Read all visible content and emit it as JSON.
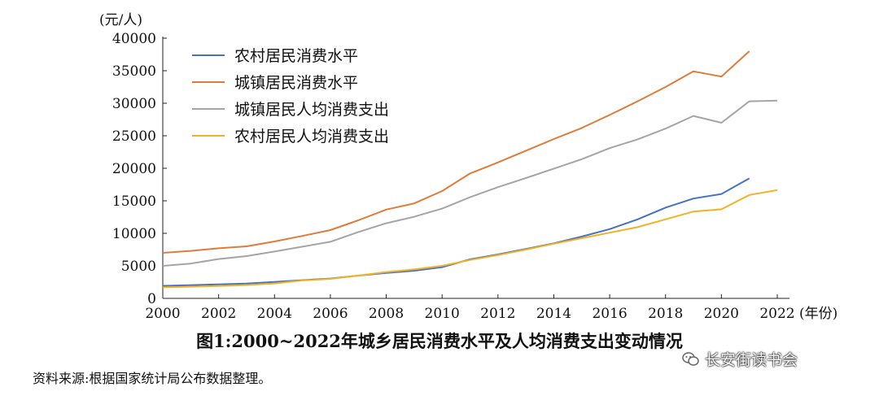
{
  "chart_data": {
    "type": "line",
    "unit_label": "(元/人)",
    "x_unit_label": "(年份)",
    "xlim": [
      2000,
      2022
    ],
    "ylim": [
      0,
      40000
    ],
    "x_ticks": [
      2000,
      2002,
      2004,
      2006,
      2008,
      2010,
      2012,
      2014,
      2016,
      2018,
      2020,
      2022
    ],
    "y_ticks": [
      0,
      5000,
      10000,
      15000,
      20000,
      25000,
      30000,
      35000,
      40000
    ],
    "grid": false,
    "legend_position": "top-left",
    "series": [
      {
        "name": "农村居民消费水平",
        "color": "#4472c4",
        "x": [
          2000,
          2001,
          2002,
          2003,
          2004,
          2005,
          2006,
          2007,
          2008,
          2009,
          2010,
          2011,
          2012,
          2013,
          2014,
          2015,
          2016,
          2017,
          2018,
          2019,
          2020,
          2021
        ],
        "values": [
          1920,
          2030,
          2160,
          2290,
          2520,
          2800,
          3050,
          3500,
          3900,
          4250,
          4800,
          6000,
          6750,
          7600,
          8450,
          9500,
          10650,
          12150,
          13950,
          15350,
          16050,
          18450
        ]
      },
      {
        "name": "城镇居民消费水平",
        "color": "#e07b39",
        "x": [
          2000,
          2001,
          2002,
          2003,
          2004,
          2005,
          2006,
          2007,
          2008,
          2009,
          2010,
          2011,
          2012,
          2013,
          2014,
          2015,
          2016,
          2017,
          2018,
          2019,
          2020,
          2021
        ],
        "values": [
          7000,
          7300,
          7700,
          8000,
          8750,
          9600,
          10500,
          12000,
          13650,
          14600,
          16500,
          19200,
          20900,
          22700,
          24500,
          26200,
          28200,
          30300,
          32500,
          34900,
          34100,
          38000
        ]
      },
      {
        "name": "城镇居民人均消费支出",
        "color": "#a5a5a5",
        "x": [
          2000,
          2001,
          2002,
          2003,
          2004,
          2005,
          2006,
          2007,
          2008,
          2009,
          2010,
          2011,
          2012,
          2013,
          2014,
          2015,
          2016,
          2017,
          2018,
          2019,
          2020,
          2021,
          2022
        ],
        "values": [
          5000,
          5350,
          6050,
          6500,
          7200,
          7950,
          8700,
          10200,
          11550,
          12550,
          13800,
          15550,
          17100,
          18500,
          19950,
          21400,
          23100,
          24450,
          26100,
          28050,
          27000,
          30300,
          30400
        ]
      },
      {
        "name": "农村居民人均消费支出",
        "color": "#f0b323",
        "x": [
          2000,
          2001,
          2002,
          2003,
          2004,
          2005,
          2006,
          2007,
          2008,
          2009,
          2010,
          2011,
          2012,
          2013,
          2014,
          2015,
          2016,
          2017,
          2018,
          2019,
          2020,
          2021,
          2022
        ],
        "values": [
          1700,
          1800,
          1900,
          2050,
          2300,
          2750,
          3000,
          3500,
          4050,
          4450,
          5000,
          5900,
          6650,
          7500,
          8400,
          9250,
          10100,
          10950,
          12150,
          13350,
          13700,
          15900,
          16650
        ]
      }
    ]
  },
  "caption": "图1:2000~2022年城乡居民消费水平及人均消费支出变动情况",
  "source_note": "资料来源:根据国家统计局公布数据整理。",
  "watermark": {
    "text": "长安街读书会",
    "icon": "wechat-icon"
  }
}
